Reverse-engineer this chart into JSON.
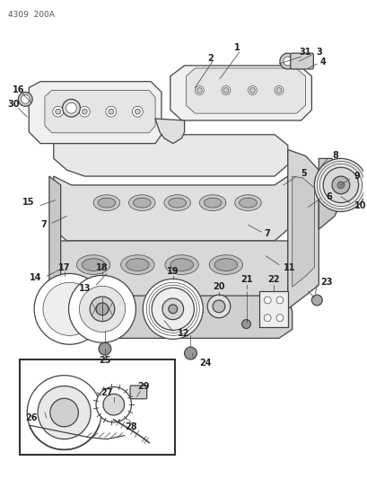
{
  "title_code": "4309  200A",
  "bg_color": "#ffffff",
  "lc": "#444444",
  "tc": "#222222",
  "fig_width": 4.1,
  "fig_height": 5.33,
  "dpi": 100
}
